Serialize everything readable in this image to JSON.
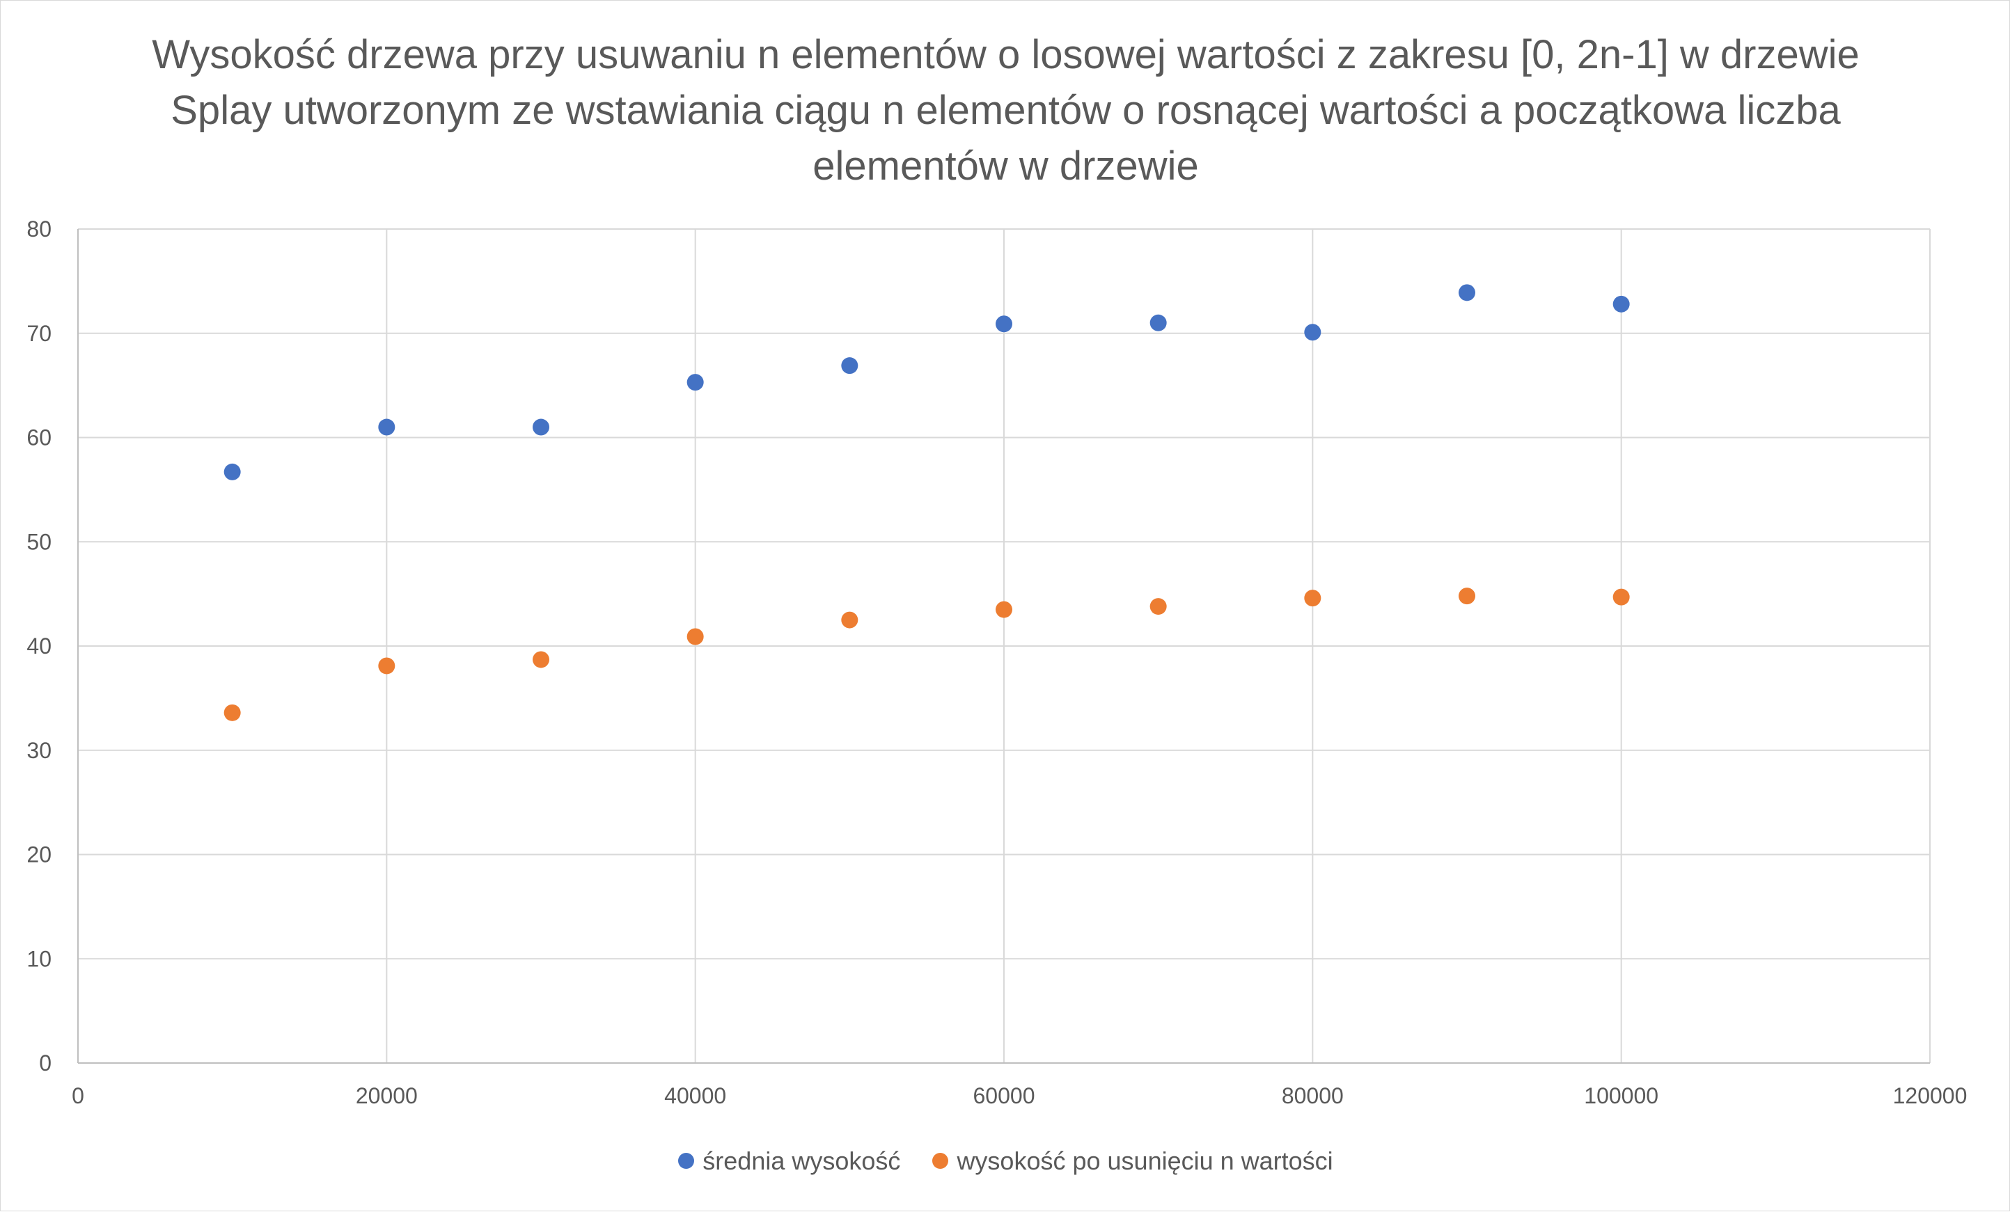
{
  "chart_data": {
    "type": "scatter",
    "title": "Wysokość drzewa przy usuwaniu n elementów o losowej wartości z zakresu [0, 2n-1] w drzewie Splay utworzonym ze wstawiania ciągu n elementów o rosnącej wartości a początkowa liczba elementów w drzewie",
    "xlabel": "",
    "ylabel": "",
    "xlim": [
      0,
      120000
    ],
    "ylim": [
      0,
      80
    ],
    "x_ticks": [
      0,
      20000,
      40000,
      60000,
      80000,
      100000,
      120000
    ],
    "y_ticks": [
      0,
      10,
      20,
      30,
      40,
      50,
      60,
      70,
      80
    ],
    "grid": true,
    "legend_position": "bottom",
    "series": [
      {
        "name": "średnia wysokość",
        "color": "#4472C4",
        "x": [
          10000,
          20000,
          30000,
          40000,
          50000,
          60000,
          70000,
          80000,
          90000,
          100000
        ],
        "y": [
          56.7,
          61,
          61,
          65.3,
          66.9,
          70.9,
          71,
          70.1,
          73.9,
          72.8
        ]
      },
      {
        "name": "wysokość po usunięciu n wartości",
        "color": "#ED7D31",
        "x": [
          10000,
          20000,
          30000,
          40000,
          50000,
          60000,
          70000,
          80000,
          90000,
          100000
        ],
        "y": [
          33.6,
          38.1,
          38.7,
          40.9,
          42.5,
          43.5,
          43.8,
          44.6,
          44.8,
          44.7
        ]
      }
    ]
  }
}
